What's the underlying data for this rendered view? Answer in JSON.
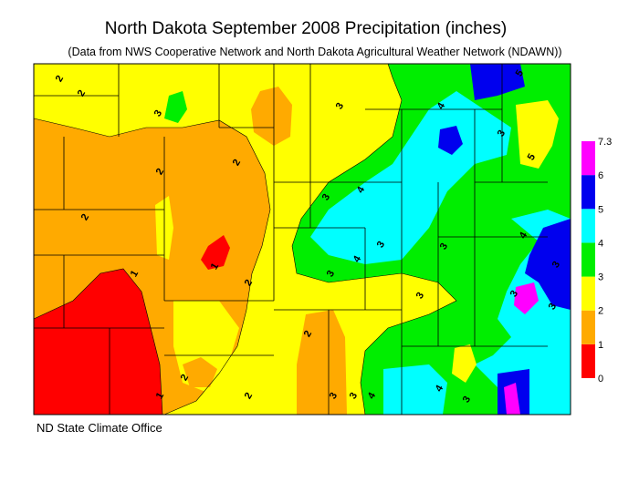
{
  "title": "North Dakota September 2008 Precipitation (inches)",
  "subtitle": "(Data from NWS Cooperative Network and North Dakota Agricultural Weather Network (NDAWN))",
  "credit": "ND State Climate Office",
  "legend": {
    "ticks": [
      0,
      1,
      2,
      3,
      4,
      5,
      6,
      7.3
    ],
    "colors": [
      "#ff0000",
      "#ffaa00",
      "#ffff00",
      "#00ee00",
      "#00ffff",
      "#0000ee",
      "#ff00ff"
    ]
  },
  "contour_labels": [
    2,
    2,
    3,
    2,
    2,
    2,
    1,
    1,
    2,
    2,
    2,
    2,
    1,
    3,
    3,
    3,
    4,
    4,
    3,
    3,
    3,
    4,
    4,
    3,
    3,
    4,
    3,
    3,
    3,
    5,
    3,
    3,
    4,
    5
  ]
}
